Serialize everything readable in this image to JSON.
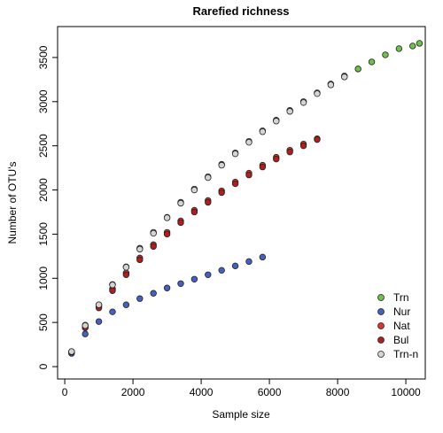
{
  "chart_data": {
    "type": "scatter",
    "title": "Rarefied richness",
    "x_label": "Sample size",
    "y_label": "Number of OTU's",
    "x": [
      200,
      600,
      1000,
      1400,
      1800,
      2200,
      2600,
      3000,
      3400,
      3800,
      4200,
      4600,
      5000,
      5400,
      5800,
      6200,
      6600,
      7000,
      7400,
      7800,
      8200,
      8600,
      9000,
      9400,
      9800,
      10200,
      10400
    ],
    "series": [
      {
        "name": "Trn",
        "color": "#6cc24a",
        "values": [
          170,
          470,
          700,
          930,
          1130,
          1340,
          1520,
          1690,
          1860,
          2010,
          2150,
          2290,
          2420,
          2550,
          2670,
          2790,
          2900,
          3000,
          3100,
          3200,
          3290,
          3370,
          3450,
          3530,
          3600,
          3630,
          3660
        ]
      },
      {
        "name": "Nur",
        "color": "#4660c0",
        "values": [
          150,
          370,
          510,
          620,
          700,
          770,
          830,
          890,
          940,
          990,
          1040,
          1090,
          1140,
          1190,
          1240,
          null,
          null,
          null,
          null,
          null,
          null,
          null,
          null,
          null,
          null,
          null,
          null
        ]
      },
      {
        "name": "Nat",
        "color": "#e23232",
        "values": [
          170,
          450,
          680,
          880,
          1060,
          1230,
          1380,
          1520,
          1650,
          1770,
          1880,
          1990,
          2090,
          2190,
          2280,
          2370,
          2450,
          2520,
          2580,
          null,
          null,
          null,
          null,
          null,
          null,
          null,
          null
        ]
      },
      {
        "name": "Bul",
        "color": "#b01e1e",
        "values": [
          165,
          440,
          665,
          860,
          1040,
          1210,
          1360,
          1500,
          1630,
          1750,
          1860,
          1970,
          2070,
          2170,
          2260,
          2350,
          2430,
          2500,
          2570,
          null,
          null,
          null,
          null,
          null,
          null,
          null,
          null
        ]
      },
      {
        "name": "Trn-n",
        "color": "#d4d4d4",
        "values": [
          170,
          465,
          700,
          925,
          1125,
          1330,
          1510,
          1685,
          1850,
          2000,
          2140,
          2280,
          2410,
          2540,
          2660,
          2780,
          2890,
          2990,
          3090,
          3190,
          3280,
          null,
          null,
          null,
          null,
          null,
          null
        ]
      }
    ],
    "xlim": [
      -210,
      10570
    ],
    "ylim": [
      -140,
      3850
    ],
    "xticks": [
      0,
      2000,
      4000,
      6000,
      8000,
      10000
    ],
    "yticks": [
      0,
      500,
      1000,
      1500,
      2000,
      2500,
      3000,
      3500
    ],
    "legend": "bottom-right"
  }
}
